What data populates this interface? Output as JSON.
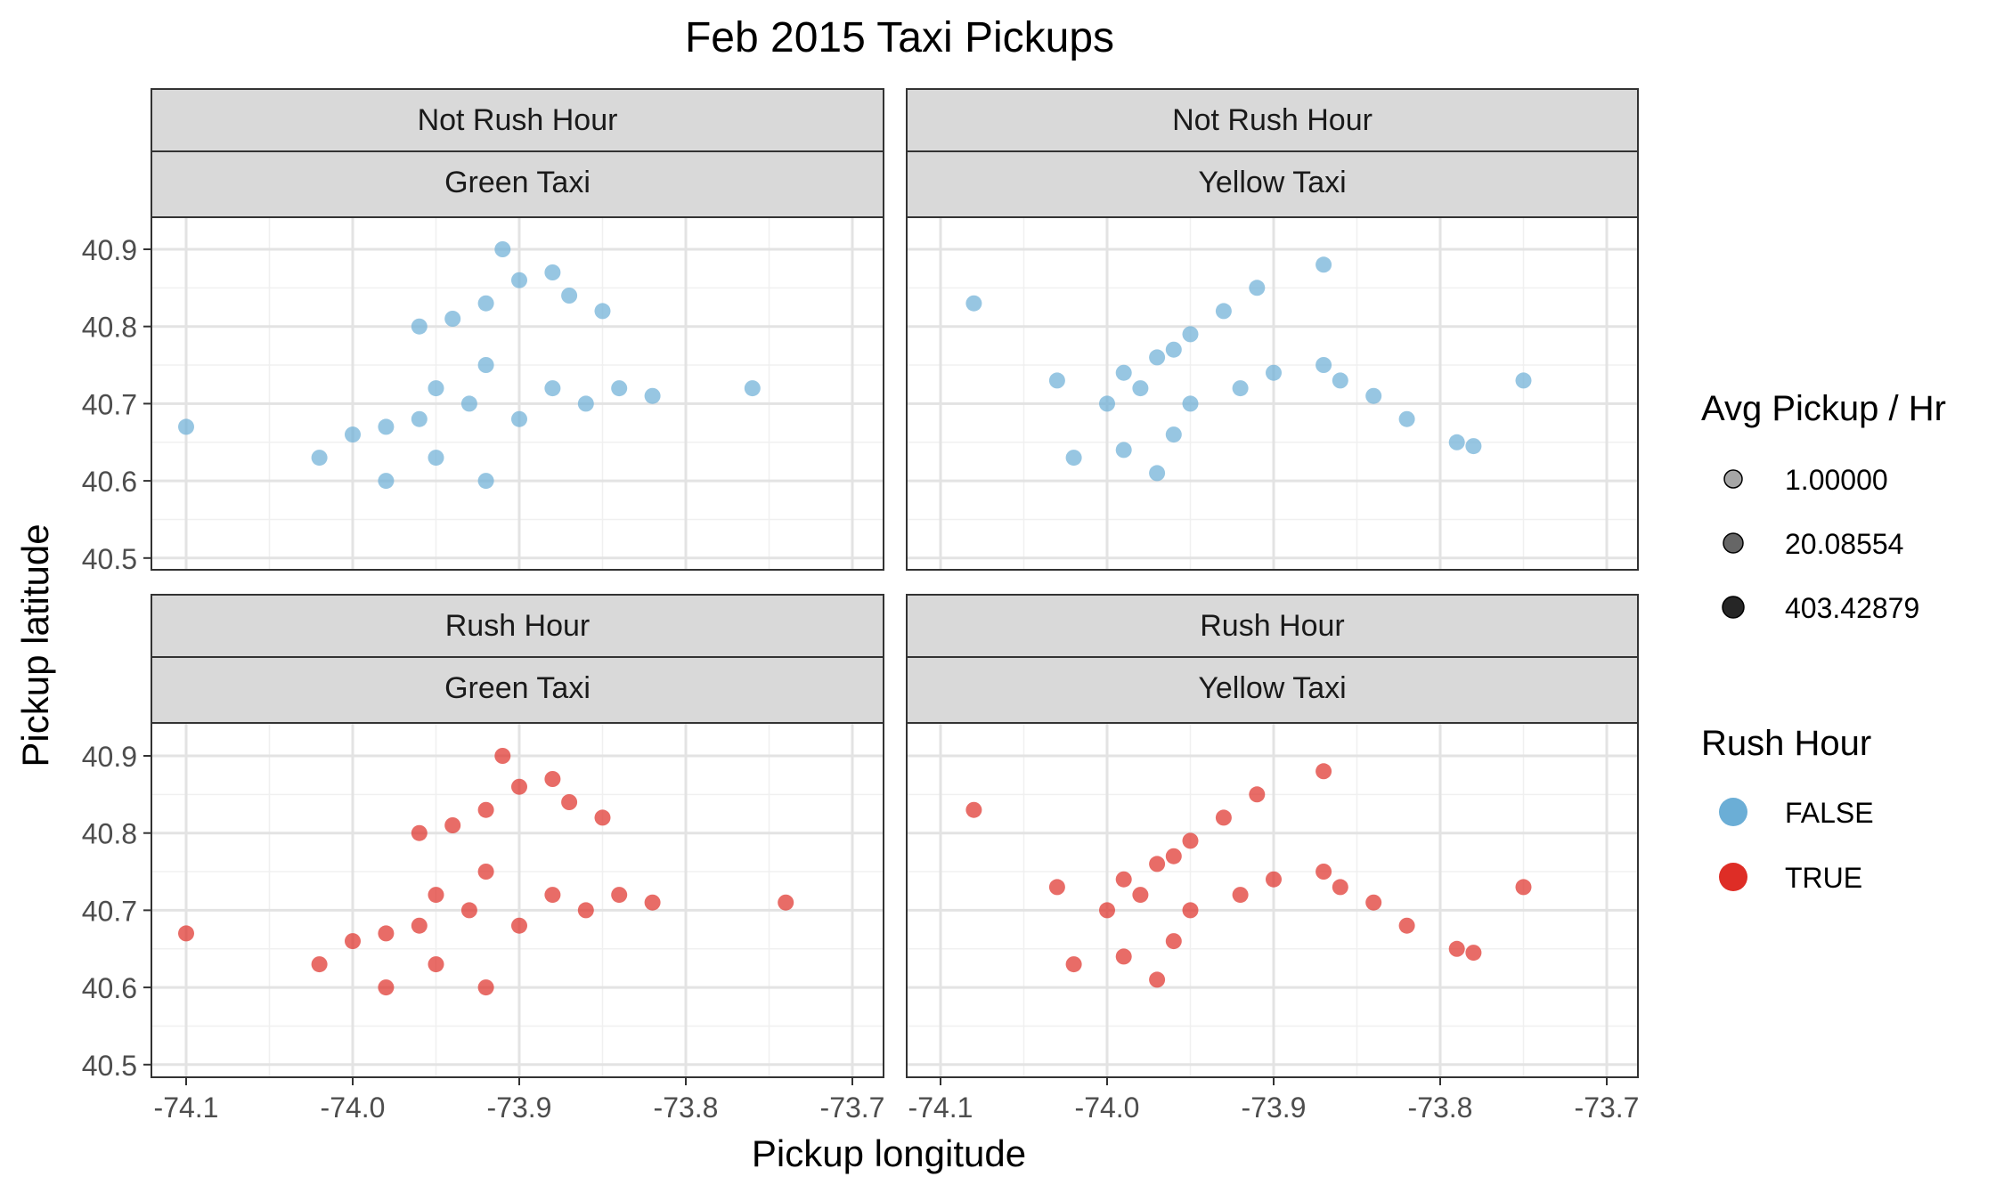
{
  "chart_data": {
    "type": "scatter",
    "title": "Feb 2015 Taxi Pickups",
    "xlabel": "Pickup longitude",
    "ylabel": "Pickup latitude",
    "xlim": [
      -74.12,
      -73.68
    ],
    "ylim": [
      40.48,
      40.93
    ],
    "x_ticks": [
      -74.1,
      -74.0,
      -73.9,
      -73.8,
      -73.7
    ],
    "x_tick_labels": [
      "-74.1",
      "-74.0",
      "-73.9",
      "-73.8",
      "-73.7"
    ],
    "y_ticks": [
      40.5,
      40.6,
      40.7,
      40.8,
      40.9
    ],
    "y_tick_labels": [
      "40.5",
      "40.6",
      "40.7",
      "40.8",
      "40.9"
    ],
    "grid": true,
    "facet_rows": [
      "Not Rush Hour",
      "Rush Hour"
    ],
    "facet_cols": [
      "Green Taxi",
      "Yellow Taxi"
    ],
    "legends": {
      "size": {
        "title": "Avg Pickup / Hr",
        "entries": [
          "1.00000",
          "20.08554",
          "403.42879"
        ],
        "alphas": [
          0.35,
          0.6,
          0.85
        ]
      },
      "color": {
        "title": "Rush Hour",
        "entries": [
          {
            "label": "FALSE",
            "color": "#6baed6"
          },
          {
            "label": "TRUE",
            "color": "#de2d26"
          }
        ]
      },
      "placement": "right"
    },
    "series": [
      {
        "row": "Not Rush Hour",
        "col": "Green Taxi",
        "rush_hour": "FALSE",
        "color": "#6baed6",
        "points": [
          [
            -73.94,
            40.81
          ],
          [
            -73.92,
            40.83
          ],
          [
            -73.9,
            40.86
          ],
          [
            -73.88,
            40.87
          ],
          [
            -73.91,
            40.9
          ],
          [
            -73.87,
            40.84
          ],
          [
            -73.85,
            40.82
          ],
          [
            -73.96,
            40.8
          ],
          [
            -73.95,
            40.72
          ],
          [
            -73.93,
            40.7
          ],
          [
            -73.9,
            40.68
          ],
          [
            -73.88,
            40.72
          ],
          [
            -73.86,
            40.7
          ],
          [
            -73.84,
            40.72
          ],
          [
            -73.92,
            40.75
          ],
          [
            -73.96,
            40.68
          ],
          [
            -73.98,
            40.67
          ],
          [
            -74.0,
            40.66
          ],
          [
            -74.02,
            40.63
          ],
          [
            -73.98,
            40.6
          ],
          [
            -73.95,
            40.63
          ],
          [
            -73.92,
            40.6
          ],
          [
            -73.82,
            40.71
          ],
          [
            -73.76,
            40.72
          ],
          [
            -74.1,
            40.67
          ]
        ]
      },
      {
        "row": "Not Rush Hour",
        "col": "Yellow Taxi",
        "rush_hour": "FALSE",
        "color": "#6baed6",
        "points": [
          [
            -73.99,
            40.74
          ],
          [
            -73.97,
            40.76
          ],
          [
            -73.95,
            40.79
          ],
          [
            -73.93,
            40.82
          ],
          [
            -73.91,
            40.85
          ],
          [
            -73.96,
            40.77
          ],
          [
            -73.98,
            40.72
          ],
          [
            -74.0,
            40.7
          ],
          [
            -73.95,
            40.7
          ],
          [
            -73.92,
            40.72
          ],
          [
            -73.9,
            40.74
          ],
          [
            -73.87,
            40.75
          ],
          [
            -73.86,
            40.73
          ],
          [
            -73.84,
            40.71
          ],
          [
            -73.82,
            40.68
          ],
          [
            -73.79,
            40.65
          ],
          [
            -73.78,
            40.645
          ],
          [
            -73.96,
            40.66
          ],
          [
            -73.99,
            40.64
          ],
          [
            -74.02,
            40.63
          ],
          [
            -73.97,
            40.61
          ],
          [
            -74.03,
            40.73
          ],
          [
            -73.87,
            40.88
          ],
          [
            -73.75,
            40.73
          ],
          [
            -74.08,
            40.83
          ]
        ]
      },
      {
        "row": "Rush Hour",
        "col": "Green Taxi",
        "rush_hour": "TRUE",
        "color": "#de2d26",
        "points": [
          [
            -73.94,
            40.81
          ],
          [
            -73.92,
            40.83
          ],
          [
            -73.9,
            40.86
          ],
          [
            -73.88,
            40.87
          ],
          [
            -73.91,
            40.9
          ],
          [
            -73.87,
            40.84
          ],
          [
            -73.85,
            40.82
          ],
          [
            -73.96,
            40.8
          ],
          [
            -73.95,
            40.72
          ],
          [
            -73.93,
            40.7
          ],
          [
            -73.9,
            40.68
          ],
          [
            -73.88,
            40.72
          ],
          [
            -73.86,
            40.7
          ],
          [
            -73.84,
            40.72
          ],
          [
            -73.92,
            40.75
          ],
          [
            -73.96,
            40.68
          ],
          [
            -73.98,
            40.67
          ],
          [
            -74.0,
            40.66
          ],
          [
            -74.02,
            40.63
          ],
          [
            -73.98,
            40.6
          ],
          [
            -73.95,
            40.63
          ],
          [
            -73.92,
            40.6
          ],
          [
            -73.82,
            40.71
          ],
          [
            -73.74,
            40.71
          ],
          [
            -74.1,
            40.67
          ]
        ]
      },
      {
        "row": "Rush Hour",
        "col": "Yellow Taxi",
        "rush_hour": "TRUE",
        "color": "#de2d26",
        "points": [
          [
            -73.99,
            40.74
          ],
          [
            -73.97,
            40.76
          ],
          [
            -73.95,
            40.79
          ],
          [
            -73.93,
            40.82
          ],
          [
            -73.91,
            40.85
          ],
          [
            -73.96,
            40.77
          ],
          [
            -73.98,
            40.72
          ],
          [
            -74.0,
            40.7
          ],
          [
            -73.95,
            40.7
          ],
          [
            -73.92,
            40.72
          ],
          [
            -73.9,
            40.74
          ],
          [
            -73.87,
            40.75
          ],
          [
            -73.86,
            40.73
          ],
          [
            -73.84,
            40.71
          ],
          [
            -73.82,
            40.68
          ],
          [
            -73.79,
            40.65
          ],
          [
            -73.78,
            40.645
          ],
          [
            -73.96,
            40.66
          ],
          [
            -73.99,
            40.64
          ],
          [
            -74.02,
            40.63
          ],
          [
            -73.97,
            40.61
          ],
          [
            -74.03,
            40.73
          ],
          [
            -73.87,
            40.88
          ],
          [
            -73.75,
            40.73
          ],
          [
            -74.08,
            40.83
          ]
        ]
      }
    ]
  }
}
